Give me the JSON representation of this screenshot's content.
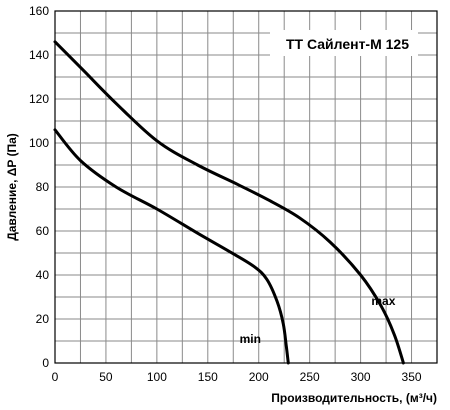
{
  "chart_data": {
    "type": "line",
    "title": "ТТ Сайлент-М 125",
    "xlabel": "Производительность, (м³/ч)",
    "ylabel": "Давление, ΔP (Па)",
    "xlim": [
      0,
      375
    ],
    "ylim": [
      0,
      160
    ],
    "x_ticks": [
      0,
      50,
      100,
      150,
      200,
      250,
      300,
      350
    ],
    "y_ticks": [
      0,
      20,
      40,
      60,
      80,
      100,
      120,
      140,
      160
    ],
    "grid": true,
    "series": [
      {
        "name": "max",
        "points": [
          [
            0,
            146
          ],
          [
            30,
            132
          ],
          [
            60,
            118
          ],
          [
            100,
            101
          ],
          [
            140,
            90
          ],
          [
            180,
            81
          ],
          [
            210,
            74
          ],
          [
            240,
            66
          ],
          [
            270,
            55
          ],
          [
            300,
            40
          ],
          [
            320,
            26
          ],
          [
            333,
            13
          ],
          [
            342,
            0
          ]
        ]
      },
      {
        "name": "min",
        "points": [
          [
            0,
            106
          ],
          [
            25,
            92
          ],
          [
            60,
            80
          ],
          [
            100,
            70
          ],
          [
            140,
            59
          ],
          [
            170,
            51
          ],
          [
            195,
            44
          ],
          [
            208,
            38
          ],
          [
            218,
            28
          ],
          [
            224,
            18
          ],
          [
            227,
            8
          ],
          [
            229,
            0
          ]
        ]
      }
    ]
  }
}
